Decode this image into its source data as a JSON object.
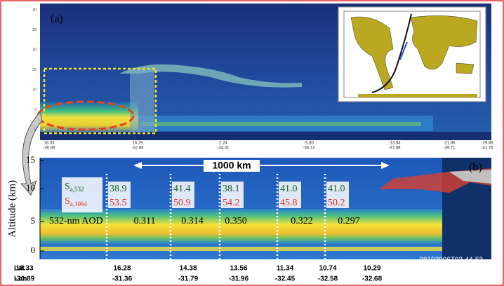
{
  "panel_a": {
    "label": "(a)",
    "yticks": [
      "30",
      "25",
      "20",
      "15",
      "10",
      "5",
      "0"
    ],
    "lat": [
      "18.33",
      "16.29",
      "2.24",
      "-5.80",
      "-13.84",
      "-21.86",
      "-29.86"
    ],
    "lon": [
      "-30.89",
      "-32.68",
      "-34.41",
      "-36.13",
      "-37.88",
      "-39.71",
      "-41.76"
    ]
  },
  "panel_b": {
    "label": "(b)",
    "distance": "1000 km",
    "y_label": "Altitude (km)",
    "yticks": [
      "15",
      "10",
      "5",
      "0"
    ],
    "sa_532": {
      "symbol": "S",
      "subscript": "a,532",
      "values": [
        "38.9",
        "41.4",
        "38.1",
        "41.0",
        "41.0"
      ]
    },
    "sa_1064": {
      "symbol": "S",
      "subscript": "a,1064",
      "values": [
        "53.5",
        "50.9",
        "54.2",
        "45.8",
        "50.2"
      ]
    },
    "aod": {
      "label": "532-nm AOD",
      "values": [
        "0.311",
        "0.314",
        "0.350",
        "0.322",
        "0.297"
      ]
    },
    "lat_label": "Lat",
    "lon_label": "Lon",
    "lat": [
      "18.33",
      "16.28",
      "14.38",
      "13.56",
      "11.34",
      "10.74",
      "10.29"
    ],
    "lon": [
      "-30.89",
      "-31.36",
      "-31.79",
      "-31.96",
      "-32.45",
      "-32.58",
      "-32.68"
    ],
    "timestamp": "08192006T03-44-53"
  }
}
